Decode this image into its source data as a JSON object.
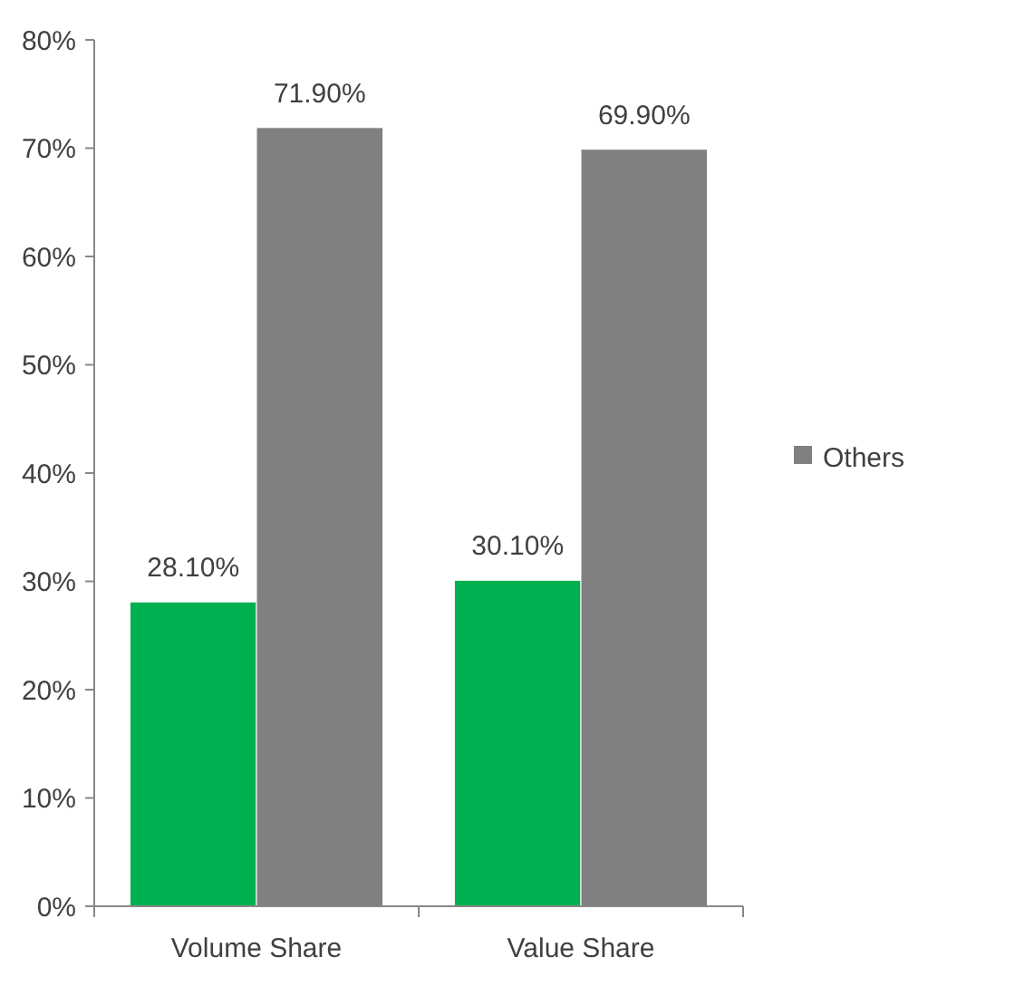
{
  "chart_data": {
    "type": "bar",
    "categories": [
      "Volume Share",
      "Value Share"
    ],
    "series": [
      {
        "color": "#00b050",
        "values": [
          28.1,
          30.1
        ],
        "value_labels": [
          "28.10%",
          "30.10%"
        ]
      },
      {
        "name": "Others",
        "color": "#808080",
        "values": [
          71.9,
          69.9
        ],
        "value_labels": [
          "71.90%",
          "69.90%"
        ]
      }
    ],
    "ylim": [
      0,
      80
    ],
    "yticks": [
      {
        "value": 0,
        "label": "0%"
      },
      {
        "value": 10,
        "label": "10%"
      },
      {
        "value": 20,
        "label": "20%"
      },
      {
        "value": 30,
        "label": "30%"
      },
      {
        "value": 40,
        "label": "40%"
      },
      {
        "value": 50,
        "label": "50%"
      },
      {
        "value": 60,
        "label": "60%"
      },
      {
        "value": 70,
        "label": "70%"
      },
      {
        "value": 80,
        "label": "80%"
      }
    ],
    "grid": false,
    "legend": "right"
  }
}
